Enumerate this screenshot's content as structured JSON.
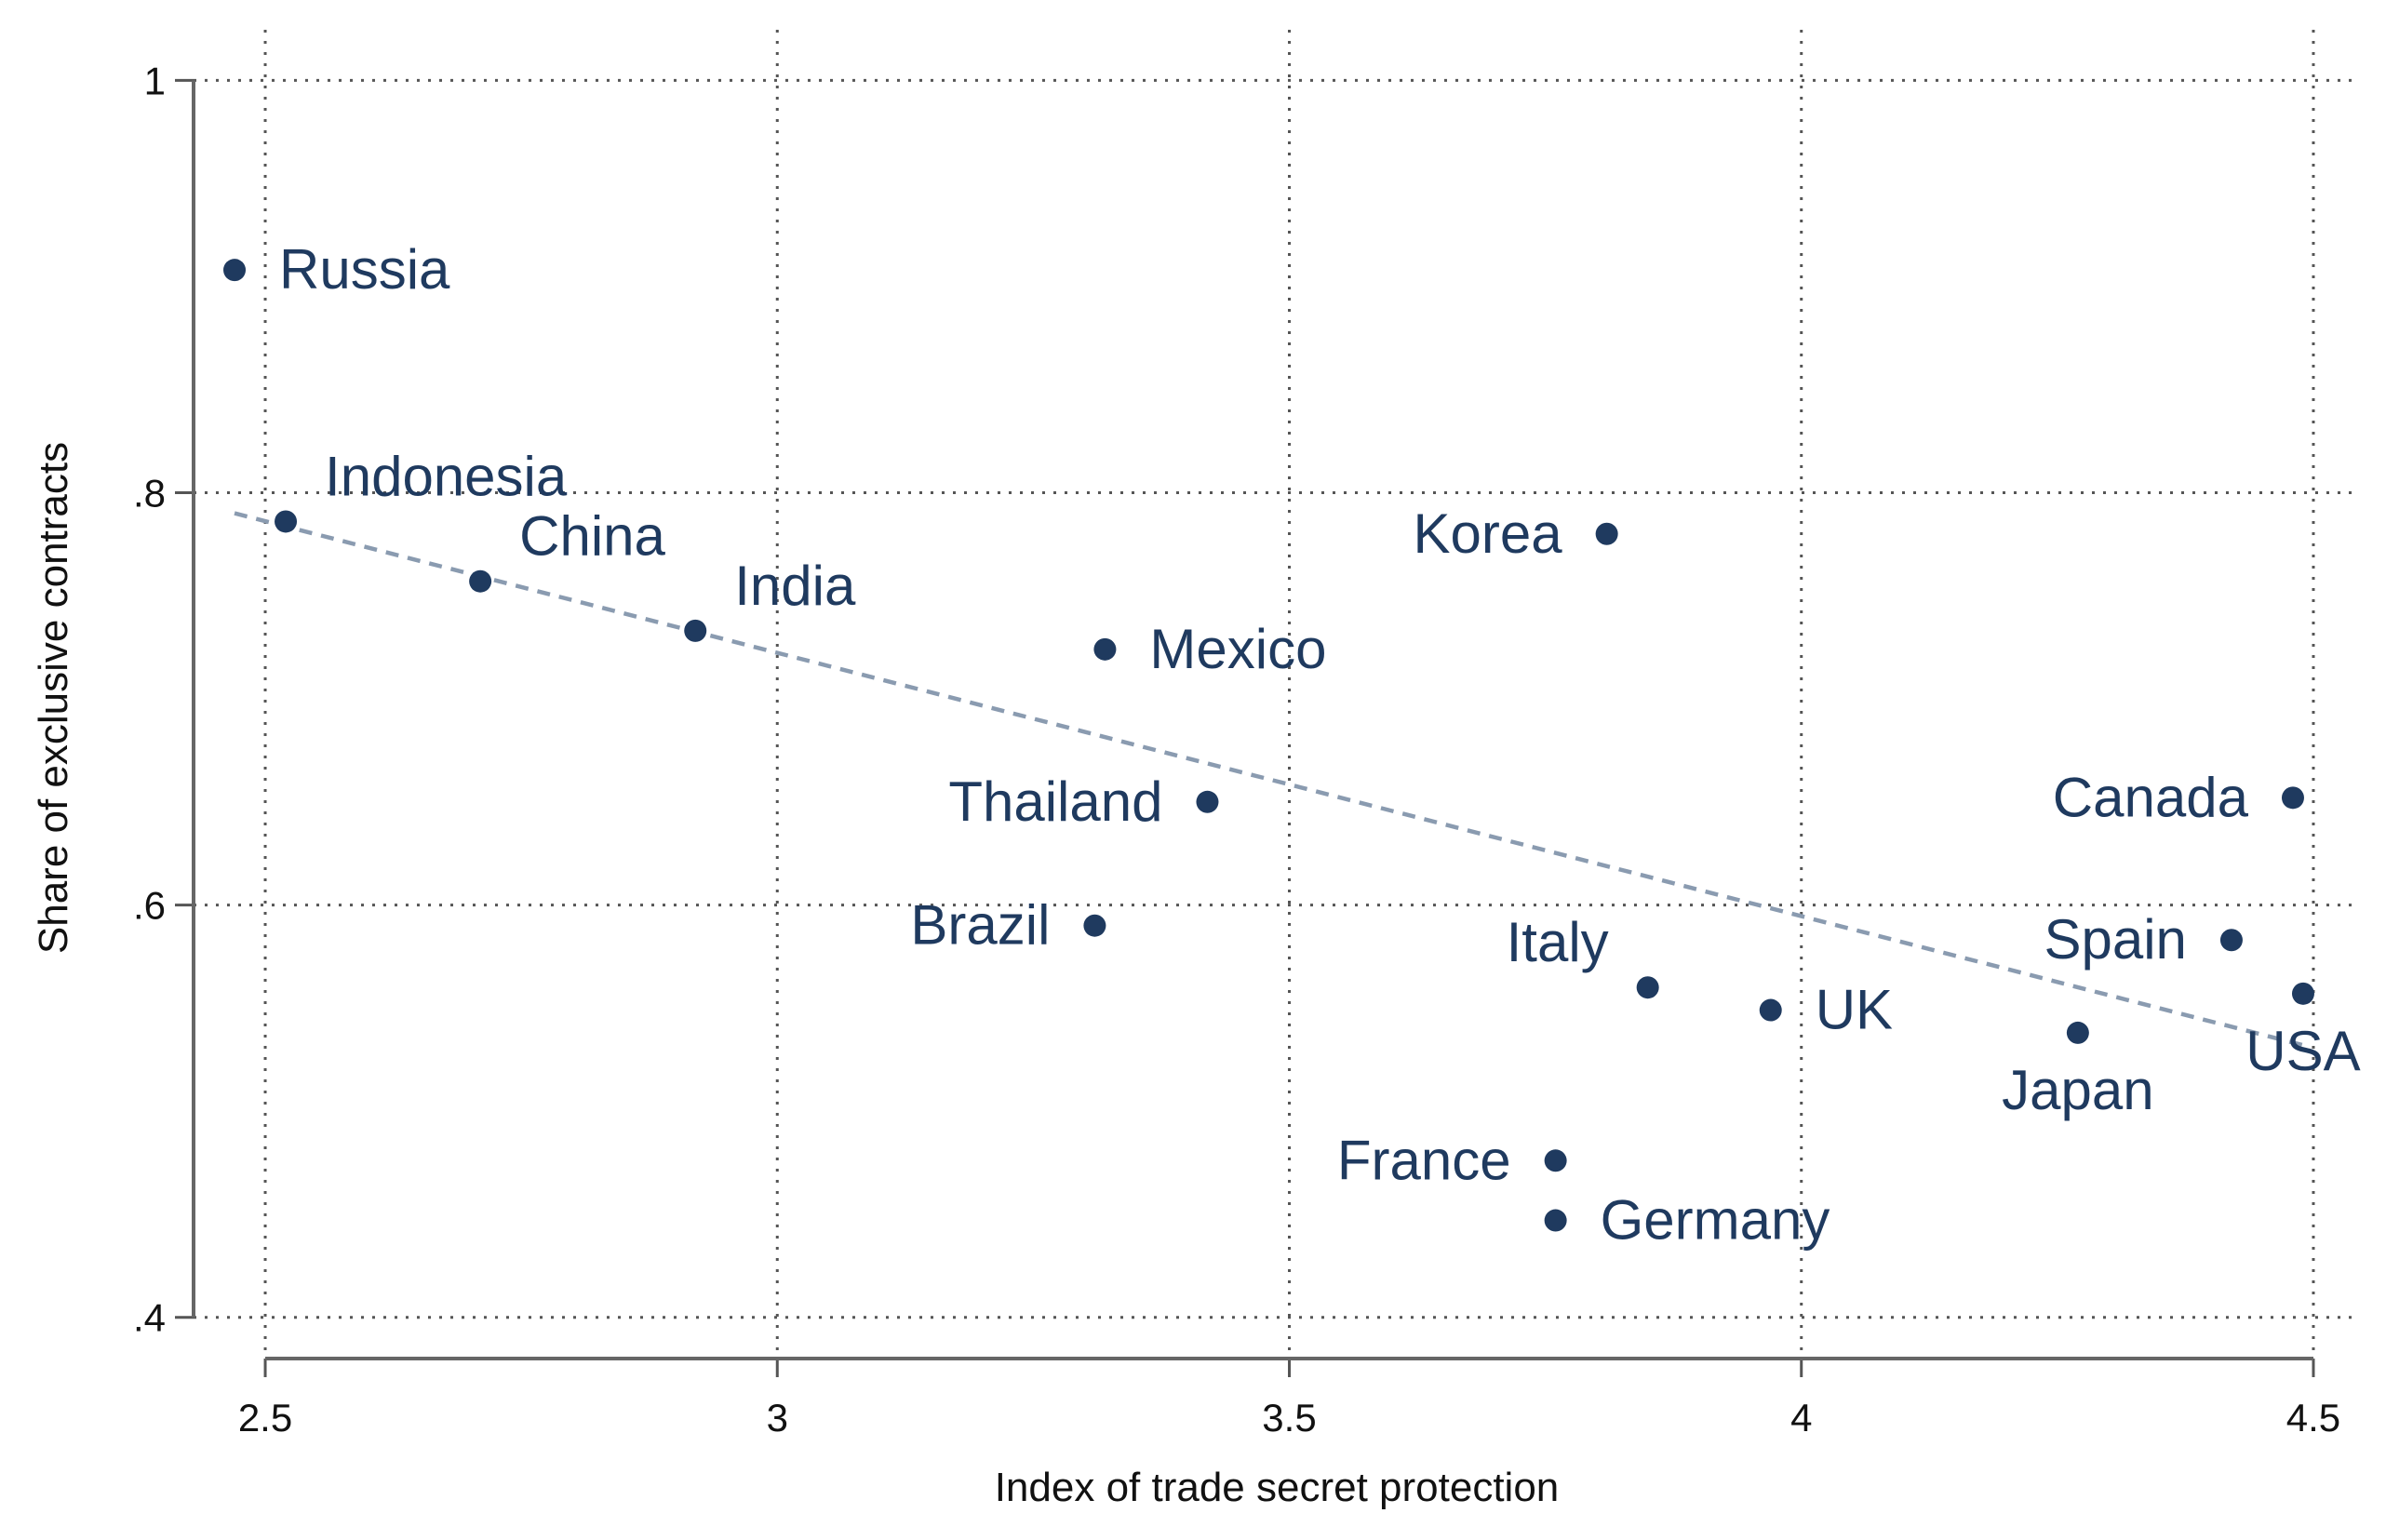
{
  "chart_data": {
    "type": "scatter",
    "xlabel": "Index of trade secret protection",
    "ylabel": "Share of exclusive contracts",
    "xlim": [
      2.43,
      4.54
    ],
    "ylim": [
      0.38,
      1.02
    ],
    "xticks": [
      2.5,
      3,
      3.5,
      4,
      4.5
    ],
    "xtick_labels": [
      "2.5",
      "3",
      "3.5",
      "4",
      "4.5"
    ],
    "yticks": [
      0.4,
      0.6,
      0.8,
      1.0
    ],
    "ytick_labels": [
      ".4",
      ".6",
      ".8",
      "1"
    ],
    "grid": true,
    "legend": "none",
    "marker_color": "#1f3a5f",
    "label_color": "#1f3a5f",
    "fit_line_color": "#8a9bb0",
    "points": [
      {
        "label": "Russia",
        "x": 2.47,
        "y": 0.908,
        "label_side": "right"
      },
      {
        "label": "Indonesia",
        "x": 2.52,
        "y": 0.786,
        "label_side": "upper-right"
      },
      {
        "label": "China",
        "x": 2.71,
        "y": 0.757,
        "label_side": "upper-right"
      },
      {
        "label": "India",
        "x": 2.92,
        "y": 0.733,
        "label_side": "upper-right"
      },
      {
        "label": "Mexico",
        "x": 3.32,
        "y": 0.724,
        "label_side": "right"
      },
      {
        "label": "Thailand",
        "x": 3.42,
        "y": 0.65,
        "label_side": "left"
      },
      {
        "label": "Brazil",
        "x": 3.31,
        "y": 0.59,
        "label_side": "left"
      },
      {
        "label": "Korea",
        "x": 3.81,
        "y": 0.78,
        "label_side": "left"
      },
      {
        "label": "Italy",
        "x": 3.85,
        "y": 0.56,
        "label_side": "upper-left"
      },
      {
        "label": "UK",
        "x": 3.97,
        "y": 0.549,
        "label_side": "right"
      },
      {
        "label": "France",
        "x": 3.76,
        "y": 0.476,
        "label_side": "left"
      },
      {
        "label": "Germany",
        "x": 3.76,
        "y": 0.447,
        "label_side": "right"
      },
      {
        "label": "Japan",
        "x": 4.27,
        "y": 0.538,
        "label_side": "below"
      },
      {
        "label": "Canada",
        "x": 4.48,
        "y": 0.652,
        "label_side": "left"
      },
      {
        "label": "Spain",
        "x": 4.42,
        "y": 0.583,
        "label_side": "left"
      },
      {
        "label": "USA",
        "x": 4.49,
        "y": 0.557,
        "label_side": "below"
      }
    ],
    "fit_line": {
      "x": [
        2.47,
        4.49
      ],
      "y": [
        0.79,
        0.532
      ]
    }
  }
}
